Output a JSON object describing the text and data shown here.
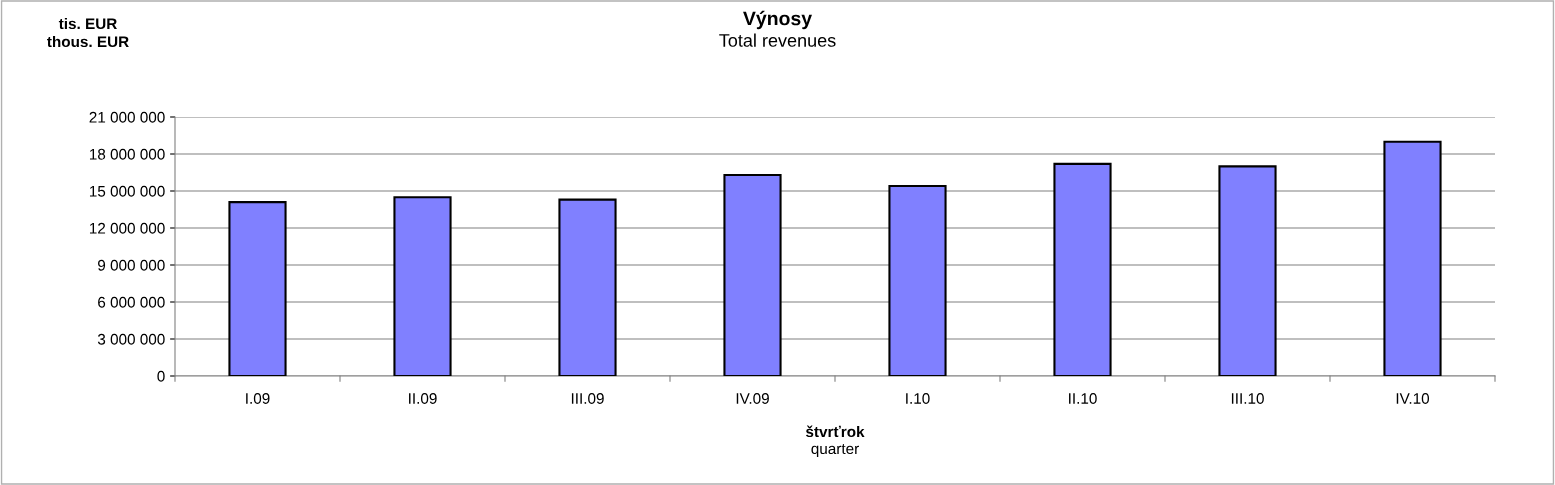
{
  "chart_data": {
    "type": "bar",
    "title": "Výnosy",
    "subtitle": "Total revenues",
    "xlabel": "štvrťrok\nquarter",
    "ylabel": "tis. EUR\nthous. EUR",
    "categories": [
      "I.09",
      "II.09",
      "III.09",
      "IV.09",
      "I.10",
      "II.10",
      "III.10",
      "IV.10"
    ],
    "values": [
      14100000,
      14500000,
      14300000,
      16300000,
      15400000,
      17200000,
      17000000,
      19000000
    ],
    "color": "#8080ff",
    "ylim": [
      0,
      21000000
    ],
    "yticks": [
      {
        "value": 0,
        "label": "0"
      },
      {
        "value": 3000000,
        "label": "3 000 000"
      },
      {
        "value": 6000000,
        "label": "6 000 000"
      },
      {
        "value": 9000000,
        "label": "9 000 000"
      },
      {
        "value": 12000000,
        "label": "12 000 000"
      },
      {
        "value": 15000000,
        "label": "15 000 000"
      },
      {
        "value": 18000000,
        "label": "18 000 000"
      },
      {
        "value": 21000000,
        "label": "21 000 000"
      }
    ],
    "grid": "y",
    "legend": false
  }
}
